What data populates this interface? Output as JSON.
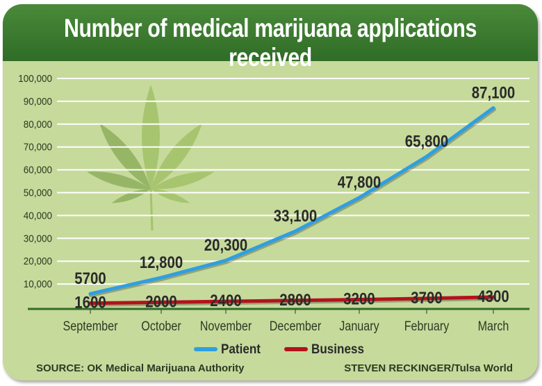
{
  "chart_data": {
    "type": "line",
    "title": "Number of medical marijuana applications received",
    "categories": [
      "September",
      "October",
      "November",
      "December",
      "January",
      "February",
      "March"
    ],
    "series": [
      {
        "name": "Patient",
        "color": "#2f9fe0",
        "values": [
          5700,
          12800,
          20300,
          33100,
          47800,
          65800,
          87100
        ],
        "labels": [
          "5700",
          "12,800",
          "20,300",
          "33,100",
          "47,800",
          "65,800",
          "87,100"
        ]
      },
      {
        "name": "Business",
        "color": "#b3121c",
        "values": [
          1600,
          2000,
          2400,
          2800,
          3200,
          3700,
          4300
        ],
        "labels": [
          "1600",
          "2000",
          "2400",
          "2800",
          "3200",
          "3700",
          "4300"
        ]
      }
    ],
    "ylim": [
      0,
      100000
    ],
    "yticks": [
      10000,
      20000,
      30000,
      40000,
      50000,
      60000,
      70000,
      80000,
      90000,
      100000
    ],
    "ytick_labels": [
      "10,000",
      "20,000",
      "30,000",
      "40,000",
      "50,000",
      "60,000",
      "70,000",
      "80,000",
      "90,000",
      "100,000"
    ],
    "grid": true,
    "legend_placement": "bottom-center",
    "background_color": "#c6da9c",
    "title_bar_color": "#3a7a30",
    "decoration": "cannabis-leaf"
  },
  "footer": {
    "source": "SOURCE: OK Medical Marijuana Authority",
    "credit": "STEVEN RECKINGER/Tulsa World"
  }
}
